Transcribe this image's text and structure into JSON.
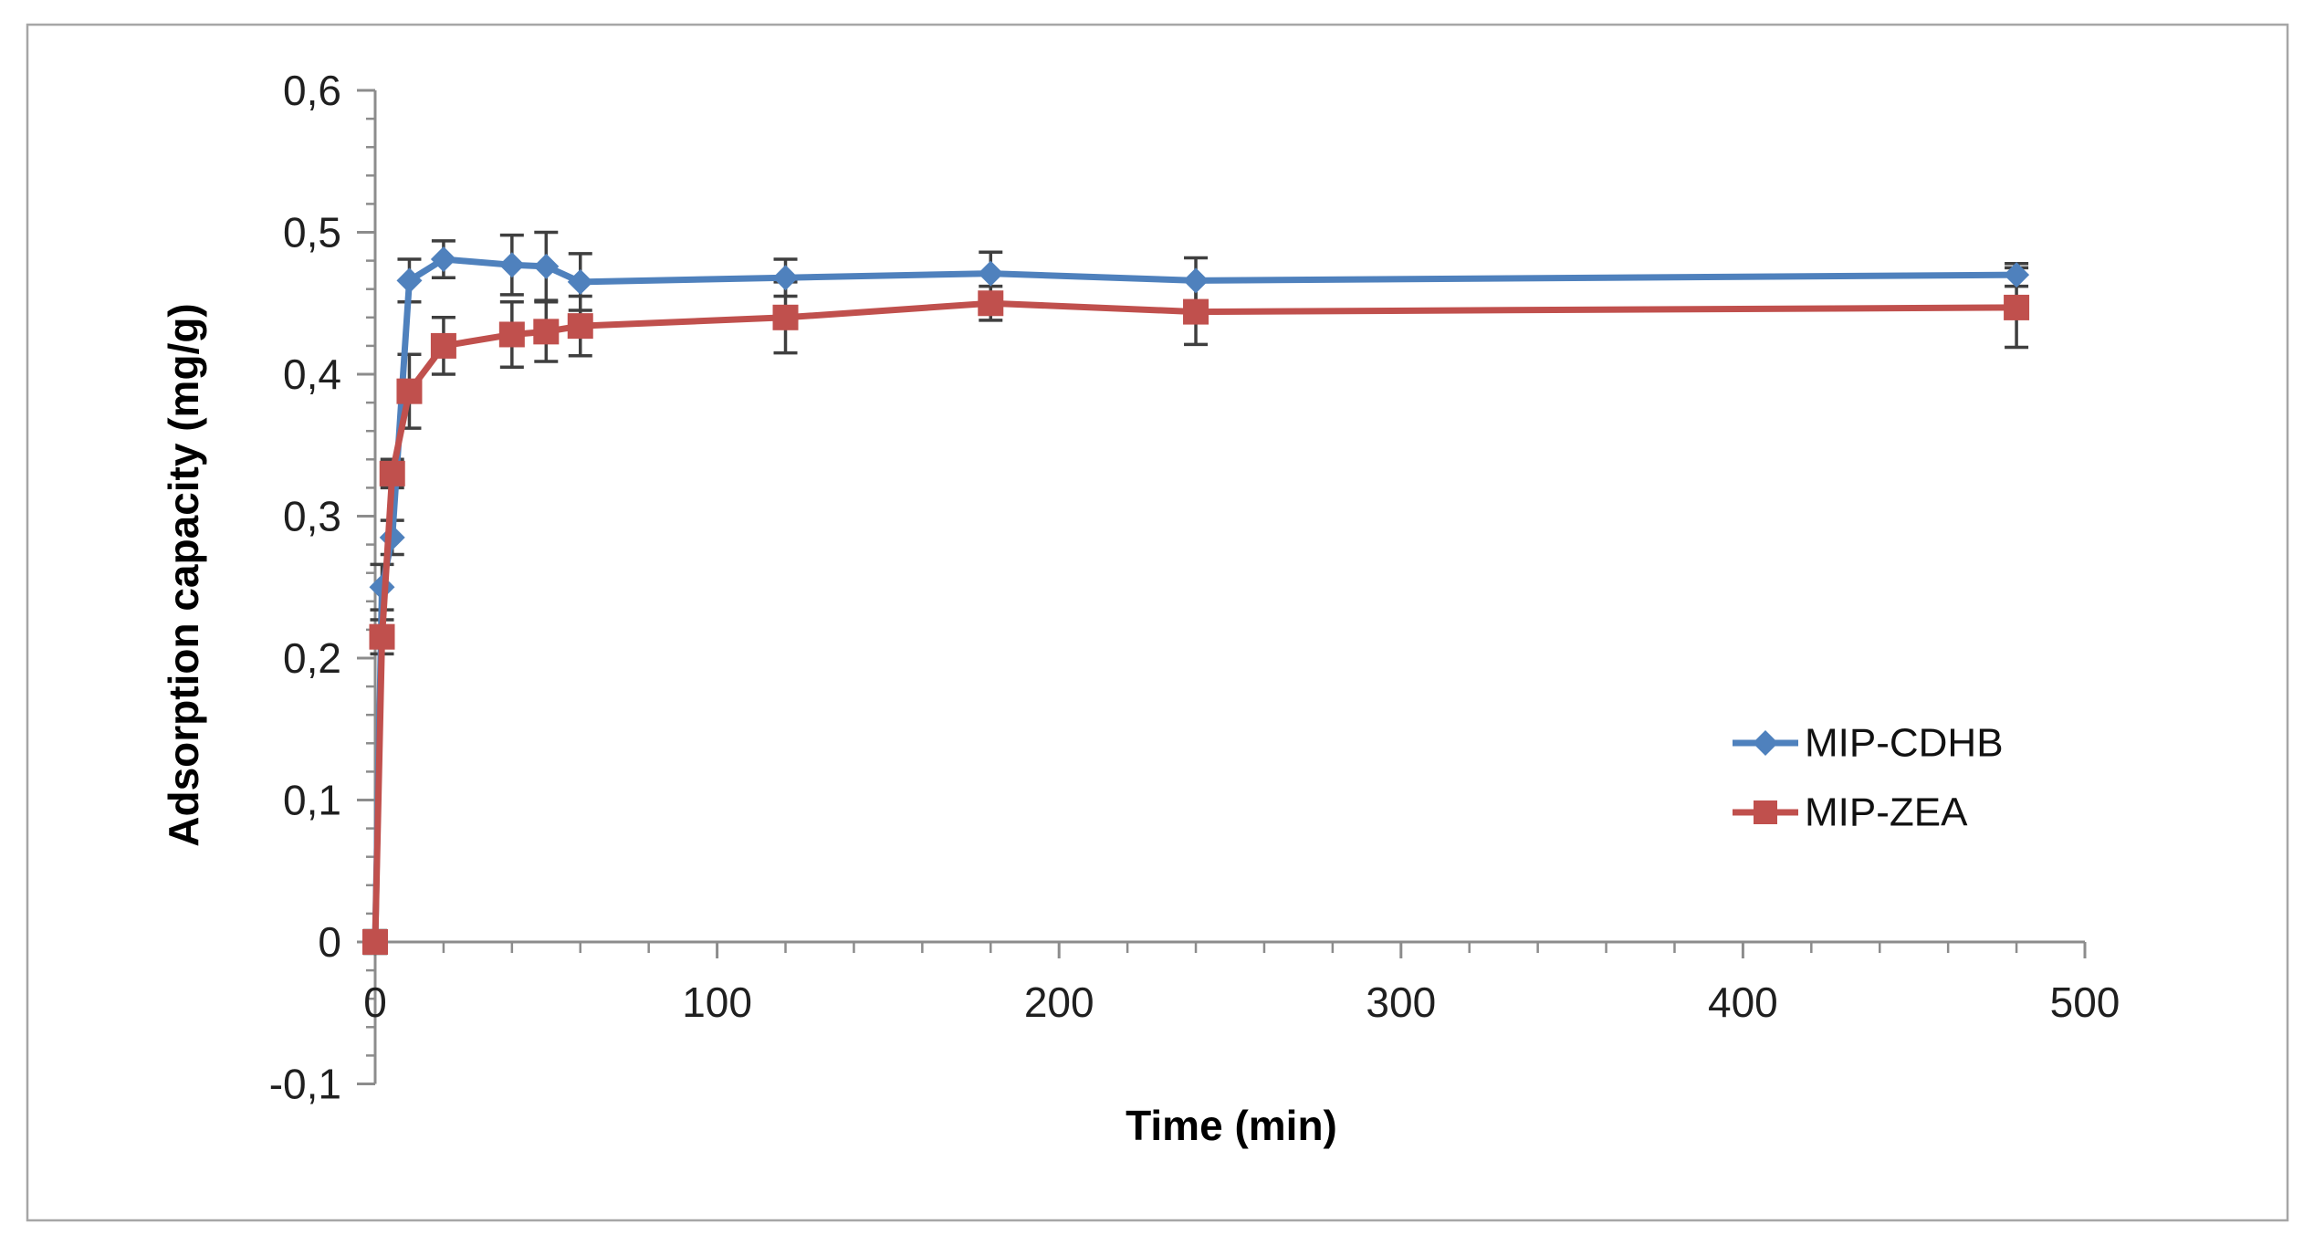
{
  "figure": {
    "border_color": "#a6a6a6",
    "background": "#ffffff"
  },
  "chart_data": {
    "type": "line",
    "title": "",
    "xlabel": "Time (min)",
    "ylabel": "Adsorption capacity (mg/g)",
    "xlim": [
      0,
      500
    ],
    "ylim": [
      -0.1,
      0.6
    ],
    "grid": false,
    "legend_position": "right-middle",
    "decimal_separator": ",",
    "axis_color": "#8c8c8c",
    "error_bar_color": "#3f3f3f",
    "x_major_ticks": [
      0,
      100,
      200,
      300,
      400,
      500
    ],
    "x_tick_labels": [
      "0",
      "100",
      "200",
      "300",
      "400",
      "500"
    ],
    "x_minor_step": 20,
    "y_major_ticks": [
      -0.1,
      0,
      0.1,
      0.2,
      0.3,
      0.4,
      0.5,
      0.6
    ],
    "y_tick_labels": [
      "-0,1",
      "0",
      "0,1",
      "0,2",
      "0,3",
      "0,4",
      "0,5",
      "0,6"
    ],
    "y_minor_step": 0.02,
    "x": [
      0,
      2,
      5,
      10,
      20,
      40,
      50,
      60,
      120,
      180,
      240,
      480
    ],
    "series": [
      {
        "name": "MIP-CDHB",
        "color": "#4f81bd",
        "marker": "diamond",
        "values": [
          0,
          0.25,
          0.285,
          0.466,
          0.481,
          0.477,
          0.476,
          0.465,
          0.468,
          0.471,
          0.466,
          0.47
        ],
        "errors": [
          0,
          0.016,
          0.012,
          0.015,
          0.013,
          0.021,
          0.024,
          0.02,
          0.013,
          0.015,
          0.016,
          0.008
        ]
      },
      {
        "name": "MIP-ZEA",
        "color": "#c0504d",
        "marker": "square",
        "values": [
          0,
          0.215,
          0.33,
          0.388,
          0.42,
          0.428,
          0.43,
          0.434,
          0.44,
          0.45,
          0.444,
          0.447
        ],
        "errors": [
          0.008,
          0.012,
          0.01,
          0.026,
          0.02,
          0.023,
          0.021,
          0.021,
          0.025,
          0.012,
          0.023,
          0.028
        ]
      }
    ]
  }
}
